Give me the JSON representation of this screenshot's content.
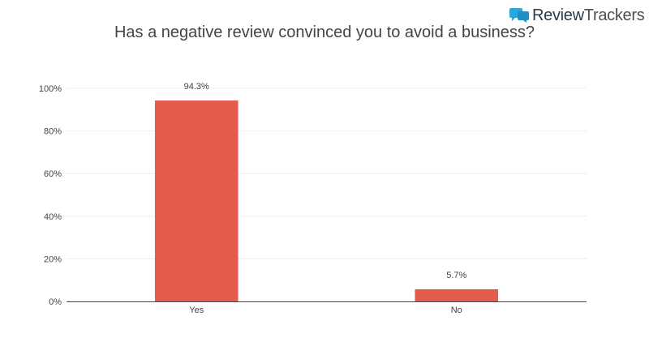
{
  "brand": {
    "name_part1": "Review",
    "name_part2": "Trackers",
    "icon": "speech-bubbles-icon",
    "icon_color": "#29a8e0"
  },
  "chart_data": {
    "type": "bar",
    "title": "Has a negative review convinced you to avoid a business?",
    "xlabel": "",
    "ylabel": "",
    "categories": [
      "Yes",
      "No"
    ],
    "values": [
      94.3,
      5.7
    ],
    "data_labels": [
      "94.3%",
      "5.7%"
    ],
    "ylim": [
      0,
      100
    ],
    "y_ticks": [
      0,
      20,
      40,
      60,
      80,
      100
    ],
    "y_tick_labels": [
      "0%",
      "20%",
      "40%",
      "60%",
      "80%",
      "100%"
    ],
    "bar_color": "#e55c4c",
    "grid": true,
    "legend": "none"
  }
}
